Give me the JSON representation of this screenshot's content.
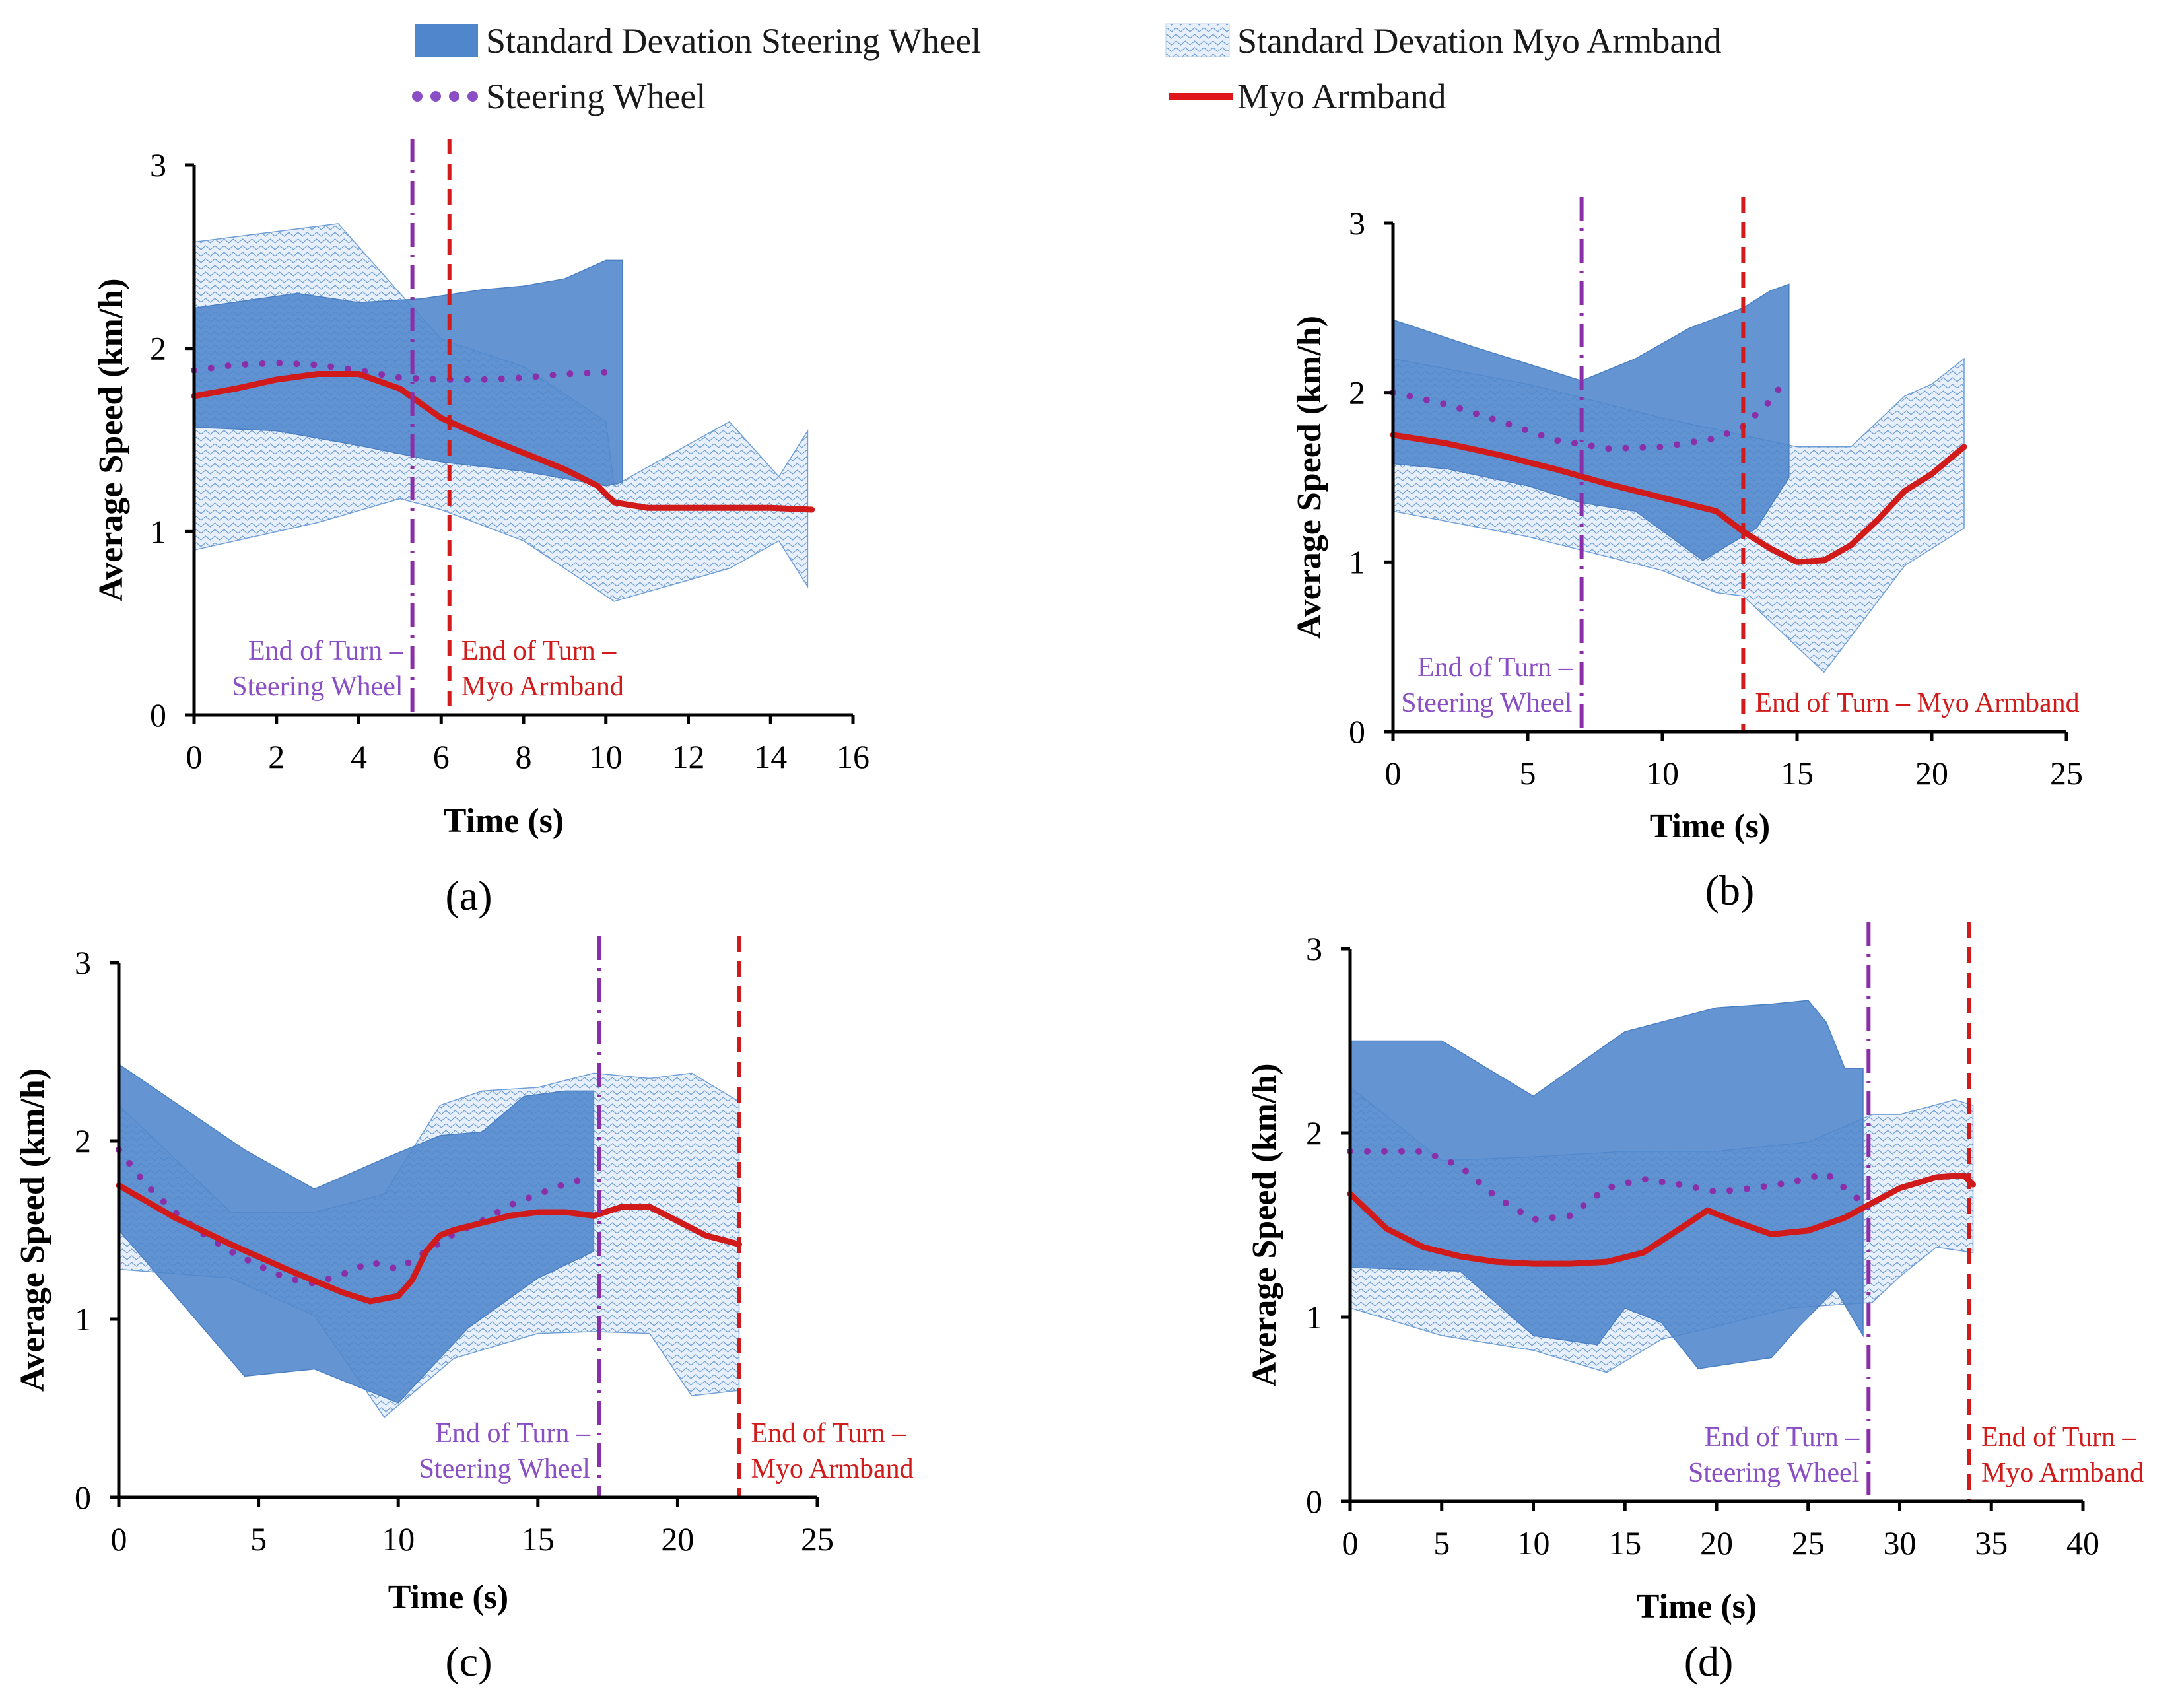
{
  "colors": {
    "steering_band": "#4f86cc",
    "myo_band_line": "#6f9fd6",
    "myo_band_fill": "#e7effa",
    "steering_line": "#8b2fa8",
    "myo_line": "#d11a1a",
    "steering_marker": "#8a4fc4",
    "myo_marker": "#e0161d"
  },
  "legend": {
    "sd_steering": "Standard Devation Steering Wheel",
    "sd_myo": "Standard Devation Myo Armband",
    "steering": "Steering Wheel",
    "myo": "Myo Armband"
  },
  "chart_data": [
    {
      "type": "line",
      "panel_label": "(a)",
      "xlabel": "Time (s)",
      "ylabel": "Average Speed (km/h)",
      "xlim": [
        0,
        16
      ],
      "ylim": [
        0,
        3
      ],
      "xticks": [
        0,
        2,
        4,
        6,
        8,
        10,
        12,
        14,
        16
      ],
      "yticks": [
        0,
        1,
        2,
        3
      ],
      "series": [
        {
          "name": "Steering Wheel",
          "style": "dotted",
          "x": [
            0,
            1,
            2,
            3,
            4,
            5,
            6,
            7,
            8,
            9,
            10
          ],
          "values": [
            1.88,
            1.91,
            1.92,
            1.91,
            1.88,
            1.84,
            1.83,
            1.83,
            1.84,
            1.86,
            1.87
          ]
        },
        {
          "name": "Myo Armband",
          "style": "solid",
          "x": [
            0,
            1,
            2,
            3,
            4,
            5,
            6,
            7,
            8,
            9,
            9.8,
            10.2,
            11,
            12,
            13,
            14,
            15
          ],
          "values": [
            1.74,
            1.78,
            1.83,
            1.86,
            1.86,
            1.78,
            1.62,
            1.52,
            1.43,
            1.34,
            1.25,
            1.16,
            1.13,
            1.13,
            1.13,
            1.13,
            1.12
          ]
        }
      ],
      "bands": [
        {
          "name": "Standard Devation Myo Armband",
          "x": [
            0,
            3.5,
            5,
            6,
            8,
            10,
            10.2,
            13,
            14.2,
            14.9,
            14.9,
            14.2,
            13,
            10.2,
            10,
            8,
            6,
            5,
            3,
            0
          ],
          "values": [
            2.58,
            2.68,
            2.3,
            2.05,
            1.9,
            1.6,
            1.25,
            1.6,
            1.3,
            1.55,
            0.7,
            0.95,
            0.8,
            0.62,
            0.65,
            0.95,
            1.12,
            1.18,
            1.05,
            0.9
          ]
        },
        {
          "name": "Standard Devation Steering Wheel",
          "x": [
            0,
            2.5,
            4,
            5.5,
            7,
            8,
            9,
            10,
            10.4,
            10.4,
            10,
            8,
            6,
            4,
            2,
            0
          ],
          "values": [
            2.22,
            2.3,
            2.25,
            2.27,
            2.32,
            2.34,
            2.38,
            2.48,
            2.48,
            1.27,
            1.25,
            1.33,
            1.38,
            1.47,
            1.55,
            1.57
          ]
        }
      ],
      "vlines": [
        {
          "x": 5.3,
          "style": "dashdot",
          "label": [
            "End of Turn –",
            "Steering Wheel"
          ],
          "label_side": "left"
        },
        {
          "x": 6.2,
          "style": "dashed",
          "label": [
            "End of Turn –",
            "Myo Armband"
          ],
          "label_side": "right"
        }
      ]
    },
    {
      "type": "line",
      "panel_label": "(b)",
      "xlabel": "Time (s)",
      "ylabel": "Average Speed (km/h)",
      "xlim": [
        0,
        25
      ],
      "ylim": [
        0,
        3
      ],
      "xticks": [
        0,
        5,
        10,
        15,
        20,
        25
      ],
      "yticks": [
        0,
        1,
        2,
        3
      ],
      "series": [
        {
          "name": "Steering Wheel",
          "style": "dotted",
          "x": [
            0,
            2,
            4,
            6,
            8,
            10,
            12,
            13,
            14,
            14.5
          ],
          "values": [
            2.0,
            1.93,
            1.83,
            1.72,
            1.67,
            1.68,
            1.73,
            1.8,
            1.95,
            2.06
          ]
        },
        {
          "name": "Myo Armband",
          "style": "solid",
          "x": [
            0,
            2,
            4,
            6,
            8,
            10,
            12,
            13,
            14,
            15,
            16,
            17,
            18,
            19,
            20,
            21.2
          ],
          "values": [
            1.75,
            1.7,
            1.63,
            1.55,
            1.46,
            1.38,
            1.3,
            1.18,
            1.08,
            1.0,
            1.01,
            1.1,
            1.25,
            1.42,
            1.52,
            1.68
          ]
        }
      ],
      "bands": [
        {
          "name": "Standard Devation Myo Armband",
          "x": [
            0,
            5,
            10,
            15,
            17,
            19,
            20,
            21.2,
            21.2,
            19,
            16,
            13,
            12,
            10,
            5,
            0
          ],
          "values": [
            2.2,
            2.05,
            1.85,
            1.68,
            1.68,
            1.98,
            2.05,
            2.2,
            1.2,
            0.98,
            0.35,
            0.8,
            0.82,
            0.95,
            1.15,
            1.3
          ]
        },
        {
          "name": "Standard Devation Steering Wheel",
          "x": [
            0,
            3,
            5,
            7,
            9,
            11,
            13,
            14,
            14.7,
            14.7,
            13.5,
            11.5,
            9,
            7,
            5,
            2,
            0
          ],
          "values": [
            2.43,
            2.27,
            2.17,
            2.07,
            2.2,
            2.38,
            2.5,
            2.6,
            2.64,
            1.5,
            1.2,
            1.01,
            1.3,
            1.35,
            1.45,
            1.55,
            1.58
          ]
        }
      ],
      "vlines": [
        {
          "x": 7.0,
          "style": "dashdot",
          "label": [
            "End of Turn –",
            "Steering Wheel"
          ],
          "label_side": "left"
        },
        {
          "x": 13.0,
          "style": "dashed",
          "label": [
            "End of Turn – Myo Armband"
          ],
          "label_side": "right"
        }
      ]
    },
    {
      "type": "line",
      "panel_label": "(c)",
      "xlabel": "Time (s)",
      "ylabel": "Average Speed (km/h)",
      "xlim": [
        0,
        25
      ],
      "ylim": [
        0,
        3
      ],
      "xticks": [
        0,
        5,
        10,
        15,
        20,
        25
      ],
      "yticks": [
        0,
        1,
        2,
        3
      ],
      "series": [
        {
          "name": "Steering Wheel",
          "style": "dotted",
          "x": [
            0,
            1,
            2,
            3,
            4,
            5,
            6,
            7,
            8,
            9,
            10,
            11,
            12,
            13,
            14,
            15,
            16,
            17
          ],
          "values": [
            1.95,
            1.75,
            1.6,
            1.48,
            1.38,
            1.3,
            1.23,
            1.2,
            1.25,
            1.32,
            1.28,
            1.38,
            1.48,
            1.55,
            1.64,
            1.7,
            1.76,
            1.8
          ]
        },
        {
          "name": "Myo Armband",
          "style": "solid",
          "x": [
            0,
            2,
            4,
            6,
            8,
            9,
            10,
            10.5,
            11,
            11.5,
            12,
            13,
            14,
            15,
            16,
            17,
            18,
            19,
            20,
            21,
            22.2
          ],
          "values": [
            1.75,
            1.57,
            1.42,
            1.28,
            1.15,
            1.1,
            1.13,
            1.22,
            1.38,
            1.47,
            1.5,
            1.54,
            1.58,
            1.6,
            1.6,
            1.58,
            1.63,
            1.63,
            1.55,
            1.47,
            1.42
          ]
        }
      ],
      "bands": [
        {
          "name": "Standard Devation Myo Armband",
          "x": [
            0,
            4,
            7,
            9.5,
            11.5,
            13,
            15,
            17,
            19,
            20.5,
            22.2,
            22.2,
            20.5,
            19,
            17,
            15,
            12,
            9.5,
            7,
            4,
            0
          ],
          "values": [
            2.2,
            1.6,
            1.6,
            1.7,
            2.2,
            2.28,
            2.3,
            2.38,
            2.35,
            2.38,
            2.22,
            0.6,
            0.57,
            0.92,
            0.93,
            0.92,
            0.78,
            0.45,
            1.02,
            1.23,
            1.28
          ]
        },
        {
          "name": "Standard Devation Steering Wheel",
          "x": [
            0,
            4.5,
            7,
            9.5,
            11.5,
            13,
            14.5,
            16,
            17,
            17,
            15,
            12.5,
            10,
            7,
            4.5,
            0
          ],
          "values": [
            2.43,
            1.95,
            1.73,
            1.9,
            2.03,
            2.05,
            2.25,
            2.28,
            2.28,
            1.38,
            1.23,
            0.95,
            0.53,
            0.72,
            0.68,
            1.5
          ]
        }
      ],
      "vlines": [
        {
          "x": 17.2,
          "style": "dashdot",
          "label": [
            "End of Turn –",
            "Steering Wheel"
          ],
          "label_side": "left"
        },
        {
          "x": 22.2,
          "style": "dashed",
          "label": [
            "End of Turn –",
            "Myo Armband"
          ],
          "label_side": "right"
        }
      ]
    },
    {
      "type": "line",
      "panel_label": "(d)",
      "xlabel": "Time (s)",
      "ylabel": "Average Speed (km/h)",
      "xlim": [
        0,
        40
      ],
      "ylim": [
        0,
        3
      ],
      "xticks": [
        0,
        5,
        10,
        15,
        20,
        25,
        30,
        35,
        40
      ],
      "yticks": [
        0,
        1,
        2,
        3
      ],
      "series": [
        {
          "name": "Steering Wheel",
          "style": "dotted",
          "x": [
            0,
            2,
            4,
            6,
            8,
            10,
            12,
            14,
            16,
            18,
            20,
            22,
            24,
            26,
            28
          ],
          "values": [
            1.9,
            1.9,
            1.9,
            1.82,
            1.65,
            1.53,
            1.55,
            1.7,
            1.75,
            1.72,
            1.68,
            1.7,
            1.73,
            1.78,
            1.62
          ]
        },
        {
          "name": "Myo Armband",
          "style": "solid",
          "x": [
            0,
            2,
            4,
            6,
            8,
            10,
            12,
            14,
            16,
            18,
            19.5,
            21,
            23,
            25,
            27,
            28.5,
            30,
            32,
            33.5,
            34
          ],
          "values": [
            1.67,
            1.48,
            1.38,
            1.33,
            1.3,
            1.29,
            1.29,
            1.3,
            1.35,
            1.48,
            1.58,
            1.52,
            1.45,
            1.47,
            1.54,
            1.62,
            1.7,
            1.76,
            1.77,
            1.72
          ]
        }
      ],
      "bands": [
        {
          "name": "Standard Devation Myo Armband",
          "x": [
            0,
            5,
            10,
            15,
            20,
            25,
            28.5,
            30,
            33,
            34,
            34,
            32,
            30,
            28.5,
            24,
            20,
            17,
            14,
            10,
            5,
            0
          ],
          "values": [
            2.25,
            1.85,
            1.87,
            1.9,
            1.9,
            1.95,
            2.1,
            2.1,
            2.18,
            2.15,
            1.35,
            1.38,
            1.22,
            1.08,
            1.05,
            0.95,
            0.88,
            0.7,
            0.82,
            0.9,
            1.05
          ]
        },
        {
          "name": "Standard Devation Steering Wheel",
          "x": [
            0,
            5,
            10,
            15,
            20,
            23,
            25,
            26,
            27,
            28,
            28,
            26.5,
            24.5,
            23,
            21,
            19,
            17,
            15,
            13.5,
            10,
            6,
            0
          ],
          "values": [
            2.5,
            2.5,
            2.2,
            2.55,
            2.68,
            2.7,
            2.72,
            2.6,
            2.35,
            2.35,
            0.9,
            1.15,
            0.95,
            0.78,
            0.75,
            0.72,
            0.97,
            1.05,
            0.85,
            0.9,
            1.25,
            1.27
          ]
        }
      ],
      "vlines": [
        {
          "x": 28.3,
          "style": "dashdot",
          "label": [
            "End of Turn –",
            "Steering Wheel"
          ],
          "label_side": "left"
        },
        {
          "x": 33.8,
          "style": "dashed",
          "label": [
            "End of Turn –",
            "Myo Armband"
          ],
          "label_side": "right"
        }
      ]
    }
  ]
}
